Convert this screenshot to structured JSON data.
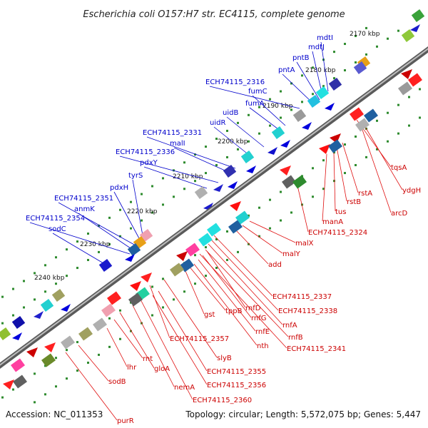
{
  "title": "Escherichia coli O157:H7 str. EC4115, complete genome",
  "footer": {
    "accession": "Accession: NC_011353",
    "summary": "Topology: circular; Length: 5,572,075 bp; Genes: 5,447"
  },
  "ticks": [
    "2170 kbp",
    "2180 kbp",
    "2190 kbp",
    "2200 kbp",
    "2210 kbp",
    "2220 kbp",
    "2230 kbp",
    "2240 kbp"
  ],
  "colors": {
    "forward_label": "#0000cc",
    "reverse_label": "#cc0000",
    "backbone": "#808080"
  },
  "forward_genes": [
    "mdtI",
    "mdtJ",
    "pntB",
    "pntA",
    "ECH74115_2316",
    "fumC",
    "fumA",
    "uidB",
    "uidR",
    "ECH74115_2331",
    "malI",
    "ECH74115_2336",
    "pdxY",
    "tyrS",
    "pdxH",
    "ECH74115_2351",
    "anmK",
    "ECH74115_2354",
    "sodC"
  ],
  "reverse_genes": [
    "tqsA",
    "ydgH",
    "arcD",
    "rstA",
    "rstB",
    "tus",
    "manA",
    "ECH74115_2324",
    "malX",
    "malY",
    "add",
    "ECH74115_2337",
    "ECH74115_2338",
    "rnfA",
    "rnfB",
    "ECH74115_2341",
    "rnfD",
    "rnfG",
    "rnfE",
    "nth",
    "tppB",
    "gst",
    "slyB",
    "ECH74115_2357",
    "ECH74115_2355",
    "ECH74115_2356",
    "ECH74115_2360",
    "nemA",
    "gloA",
    "rnt",
    "lhr",
    "sodB",
    "purR"
  ]
}
